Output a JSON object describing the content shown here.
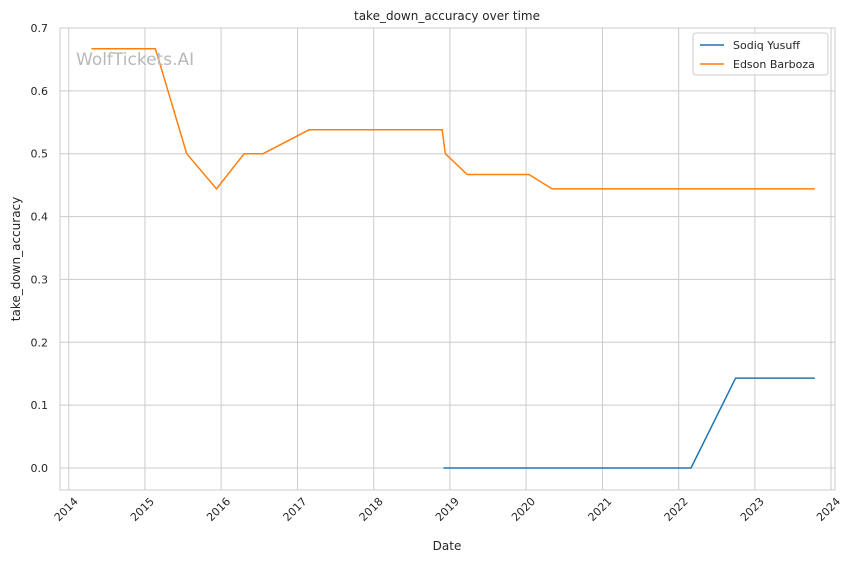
{
  "chart_data": {
    "type": "line",
    "title": "take_down_accuracy over time",
    "xlabel": "Date",
    "ylabel": "take_down_accuracy",
    "watermark": "WolfTickets.AI",
    "xlim": [
      "2013-11-20",
      "2024-01-20"
    ],
    "ylim": [
      -0.035,
      0.7
    ],
    "x_ticks": [
      "2014",
      "2015",
      "2016",
      "2017",
      "2018",
      "2019",
      "2020",
      "2021",
      "2022",
      "2023",
      "2024"
    ],
    "y_ticks": [
      "0.0",
      "0.1",
      "0.2",
      "0.3",
      "0.4",
      "0.5",
      "0.6",
      "0.7"
    ],
    "grid": true,
    "legend_position": "top-right",
    "series": [
      {
        "name": "Sodiq Yusuff",
        "color": "#1f77b4",
        "points": [
          [
            "2018-12-01",
            0.0
          ],
          [
            "2022-03-01",
            0.0
          ],
          [
            "2022-10-01",
            0.143
          ],
          [
            "2023-10-15",
            0.143
          ]
        ]
      },
      {
        "name": "Edson Barboza",
        "color": "#ff7f0e",
        "points": [
          [
            "2014-04-20",
            0.667
          ],
          [
            "2015-02-20",
            0.667
          ],
          [
            "2015-07-20",
            0.5
          ],
          [
            "2015-12-10",
            0.444
          ],
          [
            "2016-04-20",
            0.5
          ],
          [
            "2016-07-20",
            0.5
          ],
          [
            "2017-02-25",
            0.538
          ],
          [
            "2018-11-25",
            0.538
          ],
          [
            "2018-12-10",
            0.5
          ],
          [
            "2019-03-25",
            0.467
          ],
          [
            "2020-01-15",
            0.467
          ],
          [
            "2020-05-05",
            0.444
          ],
          [
            "2023-10-15",
            0.444
          ]
        ]
      }
    ]
  }
}
